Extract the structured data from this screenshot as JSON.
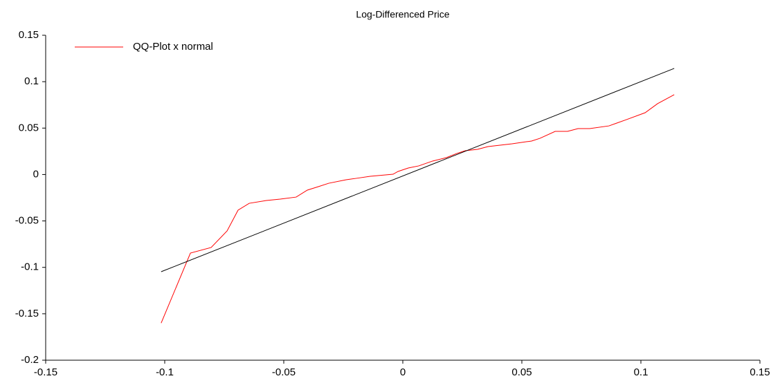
{
  "chart_data": {
    "type": "line",
    "title": "Log-Differenced Price",
    "series": [
      {
        "name": "QQ-Plot x normal",
        "color": "#ff0000",
        "x": [
          -0.1015,
          -0.0892,
          -0.0805,
          -0.0738,
          -0.0692,
          -0.0645,
          -0.0573,
          -0.0515,
          -0.0448,
          -0.0401,
          -0.0355,
          -0.0311,
          -0.0238,
          -0.0195,
          -0.0137,
          -0.0041,
          -0.002,
          0.0023,
          0.0067,
          0.0125,
          0.0183,
          0.0227,
          0.0262,
          0.0314,
          0.0358,
          0.0459,
          0.0541,
          0.0576,
          0.064,
          0.0692,
          0.0736,
          0.0785,
          0.0866,
          0.0939,
          0.1018,
          0.107,
          0.114
        ],
        "values": [
          -0.16,
          -0.0846,
          -0.0786,
          -0.0607,
          -0.0384,
          -0.031,
          -0.028,
          -0.0265,
          -0.0243,
          -0.0168,
          -0.0131,
          -0.0094,
          -0.0056,
          -0.0041,
          -0.0019,
          0.0003,
          0.0033,
          0.007,
          0.0093,
          0.0145,
          0.0182,
          0.0227,
          0.0256,
          0.0271,
          0.0301,
          0.0331,
          0.0361,
          0.039,
          0.0465,
          0.0465,
          0.0495,
          0.0495,
          0.0524,
          0.0591,
          0.0666,
          0.0763,
          0.086
        ]
      },
      {
        "color": "#000000",
        "x": [
          -0.1015,
          0.114
        ],
        "values": [
          -0.1047,
          0.1143
        ]
      }
    ],
    "xlim": [
      -0.15,
      0.15
    ],
    "ylim": [
      -0.2,
      0.15
    ],
    "xticks": [
      -0.15,
      -0.1,
      -0.05,
      0,
      0.05,
      0.1,
      0.15
    ],
    "yticks": [
      -0.2,
      -0.15,
      -0.1,
      -0.05,
      0,
      0.05,
      0.1,
      0.15
    ],
    "legend": "upper left"
  }
}
